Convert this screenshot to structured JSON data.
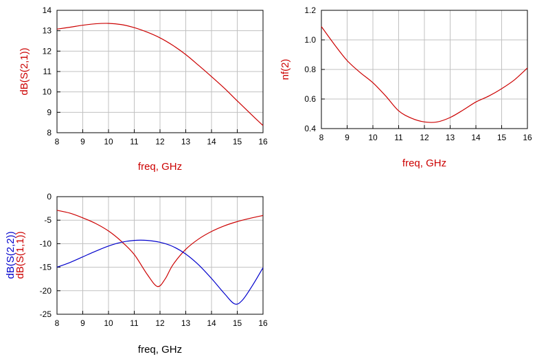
{
  "colors": {
    "red": "#cc0000",
    "blue": "#0000cc",
    "grid": "#c0c0c0",
    "frame": "#000000"
  },
  "chart_data": [
    {
      "id": "s21",
      "type": "line",
      "xlabel": "freq, GHz",
      "ylabel": "dB(S(2,1))",
      "xlim": [
        8,
        16
      ],
      "ylim": [
        8,
        14
      ],
      "xticks": [
        8,
        9,
        10,
        11,
        12,
        13,
        14,
        15,
        16
      ],
      "yticks": [
        8,
        9,
        10,
        11,
        12,
        13,
        14
      ],
      "grid": true,
      "series": [
        {
          "color": "red",
          "x": [
            8,
            8.5,
            9,
            9.5,
            10,
            10.5,
            11,
            11.5,
            12,
            12.5,
            13,
            13.5,
            14,
            14.5,
            15,
            15.5,
            16
          ],
          "y": [
            13.08,
            13.17,
            13.27,
            13.34,
            13.36,
            13.3,
            13.15,
            12.93,
            12.65,
            12.28,
            11.83,
            11.3,
            10.75,
            10.18,
            9.56,
            8.95,
            8.35
          ]
        }
      ]
    },
    {
      "id": "nf",
      "type": "line",
      "xlabel": "freq, GHz",
      "ylabel": "nf(2)",
      "xlim": [
        8,
        16
      ],
      "ylim": [
        0.4,
        1.2
      ],
      "xticks": [
        8,
        9,
        10,
        11,
        12,
        13,
        14,
        15,
        16
      ],
      "yticks": [
        0.4,
        0.6,
        0.8,
        1.0,
        1.2
      ],
      "ytick_labels": [
        "0.4",
        "0.6",
        "0.8",
        "1.0",
        "1.2"
      ],
      "grid": true,
      "series": [
        {
          "color": "red",
          "x": [
            8,
            8.5,
            9,
            9.5,
            10,
            10.5,
            11,
            11.5,
            12,
            12.5,
            13,
            13.5,
            14,
            14.5,
            15,
            15.5,
            16
          ],
          "y": [
            1.09,
            0.97,
            0.86,
            0.78,
            0.71,
            0.62,
            0.52,
            0.47,
            0.445,
            0.445,
            0.475,
            0.525,
            0.58,
            0.62,
            0.67,
            0.73,
            0.81
          ]
        }
      ]
    },
    {
      "id": "s11s22",
      "type": "line",
      "xlabel": "freq, GHz",
      "ylabel_lines": [
        {
          "text": "dB(S(1,1))",
          "color": "red"
        },
        {
          "text": "dB(S(2,2))",
          "color": "blue"
        }
      ],
      "xlim": [
        8,
        16
      ],
      "ylim": [
        -25,
        0
      ],
      "xticks": [
        8,
        9,
        10,
        11,
        12,
        13,
        14,
        15,
        16
      ],
      "yticks": [
        -25,
        -20,
        -15,
        -10,
        -5,
        0
      ],
      "grid": true,
      "series": [
        {
          "color": "red",
          "x": [
            8,
            8.5,
            9,
            9.5,
            10,
            10.5,
            11,
            11.5,
            11.9,
            12.2,
            12.5,
            13,
            13.5,
            14,
            14.5,
            15,
            15.5,
            16
          ],
          "y": [
            -2.9,
            -3.5,
            -4.5,
            -5.7,
            -7.3,
            -9.5,
            -12.3,
            -16.5,
            -19.1,
            -17.5,
            -14.5,
            -11.2,
            -9.0,
            -7.4,
            -6.2,
            -5.3,
            -4.6,
            -4.0
          ]
        },
        {
          "color": "blue",
          "x": [
            8,
            8.5,
            9,
            9.5,
            10,
            10.5,
            11,
            11.5,
            12,
            12.5,
            13,
            13.5,
            14,
            14.5,
            14.9,
            15.2,
            15.6,
            16
          ],
          "y": [
            -15.0,
            -14.0,
            -12.8,
            -11.6,
            -10.5,
            -9.7,
            -9.3,
            -9.3,
            -9.7,
            -10.6,
            -12.2,
            -14.5,
            -17.4,
            -20.6,
            -22.8,
            -22.0,
            -18.8,
            -15.1
          ]
        }
      ]
    }
  ]
}
